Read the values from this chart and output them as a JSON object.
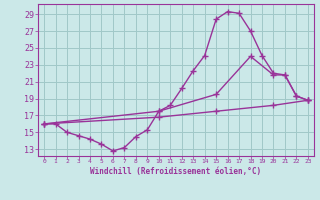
{
  "xlabel": "Windchill (Refroidissement éolien,°C)",
  "background_color": "#cbe8e8",
  "grid_color": "#a0c8c8",
  "line_color": "#993399",
  "x_ticks": [
    0,
    1,
    2,
    3,
    4,
    5,
    6,
    7,
    8,
    9,
    10,
    11,
    12,
    13,
    14,
    15,
    16,
    17,
    18,
    19,
    20,
    21,
    22,
    23
  ],
  "y_ticks": [
    13,
    15,
    17,
    19,
    21,
    23,
    25,
    27,
    29
  ],
  "xlim": [
    -0.5,
    23.5
  ],
  "ylim": [
    12.2,
    30.2
  ],
  "series": [
    {
      "x": [
        0,
        1,
        2,
        3,
        4,
        5,
        6,
        7,
        8,
        9,
        10,
        11,
        12,
        13,
        14,
        15,
        16,
        17,
        18,
        19,
        20,
        21,
        22,
        23
      ],
      "y": [
        16.0,
        16.0,
        15.0,
        14.6,
        14.2,
        13.6,
        12.8,
        13.2,
        14.5,
        15.3,
        17.5,
        18.2,
        20.2,
        22.3,
        24.1,
        28.4,
        29.3,
        29.1,
        27.0,
        24.1,
        22.0,
        21.8,
        19.3,
        18.8
      ]
    },
    {
      "x": [
        0,
        10,
        15,
        18,
        20,
        21,
        22,
        23
      ],
      "y": [
        16.0,
        17.5,
        19.5,
        24.0,
        21.8,
        21.8,
        19.3,
        18.8
      ]
    },
    {
      "x": [
        0,
        10,
        15,
        20,
        23
      ],
      "y": [
        16.0,
        16.8,
        17.5,
        18.2,
        18.8
      ]
    }
  ]
}
